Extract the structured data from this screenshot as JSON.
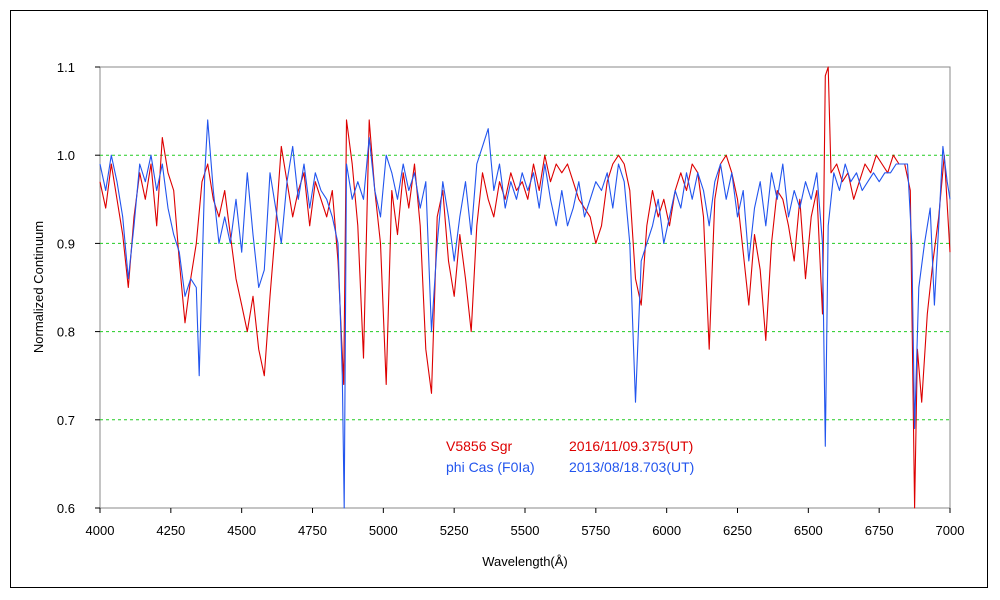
{
  "chart_data": {
    "type": "line",
    "title": "",
    "xlabel": "Wavelength(Å)",
    "ylabel": "Normalized Continuum",
    "xlim": [
      4000,
      7000
    ],
    "ylim": [
      0.6,
      1.1
    ],
    "xticks": [
      4000,
      4250,
      4500,
      4750,
      5000,
      5250,
      5500,
      5750,
      6000,
      6250,
      6500,
      6750,
      7000
    ],
    "yticks": [
      "0.6",
      "0.7",
      "0.8",
      "0.9",
      "1.0",
      "1.1"
    ],
    "grid": "horizontal dashed",
    "legend_placement": "bottom-center",
    "series": [
      {
        "name": "V5856 Sgr",
        "note": "2016/11/09.375(UT)",
        "color": "#dd0000",
        "points": [
          [
            4000,
            0.97
          ],
          [
            4020,
            0.94
          ],
          [
            4040,
            0.99
          ],
          [
            4060,
            0.95
          ],
          [
            4080,
            0.91
          ],
          [
            4100,
            0.85
          ],
          [
            4120,
            0.93
          ],
          [
            4140,
            0.98
          ],
          [
            4160,
            0.95
          ],
          [
            4180,
            0.99
          ],
          [
            4200,
            0.92
          ],
          [
            4220,
            1.02
          ],
          [
            4240,
            0.98
          ],
          [
            4260,
            0.96
          ],
          [
            4280,
            0.88
          ],
          [
            4300,
            0.81
          ],
          [
            4320,
            0.86
          ],
          [
            4340,
            0.9
          ],
          [
            4360,
            0.97
          ],
          [
            4380,
            0.99
          ],
          [
            4400,
            0.95
          ],
          [
            4420,
            0.93
          ],
          [
            4440,
            0.96
          ],
          [
            4460,
            0.91
          ],
          [
            4480,
            0.86
          ],
          [
            4500,
            0.83
          ],
          [
            4520,
            0.8
          ],
          [
            4540,
            0.84
          ],
          [
            4560,
            0.78
          ],
          [
            4580,
            0.75
          ],
          [
            4600,
            0.84
          ],
          [
            4620,
            0.92
          ],
          [
            4640,
            1.01
          ],
          [
            4660,
            0.97
          ],
          [
            4680,
            0.93
          ],
          [
            4700,
            0.96
          ],
          [
            4720,
            0.98
          ],
          [
            4740,
            0.92
          ],
          [
            4760,
            0.97
          ],
          [
            4780,
            0.95
          ],
          [
            4800,
            0.93
          ],
          [
            4820,
            0.96
          ],
          [
            4840,
            0.88
          ],
          [
            4860,
            0.74
          ],
          [
            4870,
            1.04
          ],
          [
            4890,
            0.99
          ],
          [
            4910,
            0.92
          ],
          [
            4930,
            0.77
          ],
          [
            4950,
            1.04
          ],
          [
            4970,
            0.96
          ],
          [
            4990,
            0.9
          ],
          [
            5010,
            0.74
          ],
          [
            5030,
            0.96
          ],
          [
            5050,
            0.91
          ],
          [
            5070,
            0.98
          ],
          [
            5090,
            0.94
          ],
          [
            5110,
            0.99
          ],
          [
            5130,
            0.92
          ],
          [
            5150,
            0.78
          ],
          [
            5170,
            0.73
          ],
          [
            5190,
            0.93
          ],
          [
            5210,
            0.96
          ],
          [
            5230,
            0.88
          ],
          [
            5250,
            0.84
          ],
          [
            5270,
            0.91
          ],
          [
            5290,
            0.86
          ],
          [
            5310,
            0.8
          ],
          [
            5330,
            0.92
          ],
          [
            5350,
            0.98
          ],
          [
            5370,
            0.95
          ],
          [
            5390,
            0.93
          ],
          [
            5410,
            0.97
          ],
          [
            5430,
            0.95
          ],
          [
            5450,
            0.98
          ],
          [
            5470,
            0.96
          ],
          [
            5490,
            0.97
          ],
          [
            5510,
            0.95
          ],
          [
            5530,
            0.99
          ],
          [
            5550,
            0.96
          ],
          [
            5570,
            1.0
          ],
          [
            5590,
            0.97
          ],
          [
            5610,
            0.99
          ],
          [
            5630,
            0.98
          ],
          [
            5650,
            0.99
          ],
          [
            5670,
            0.97
          ],
          [
            5690,
            0.95
          ],
          [
            5710,
            0.94
          ],
          [
            5730,
            0.93
          ],
          [
            5750,
            0.9
          ],
          [
            5770,
            0.92
          ],
          [
            5790,
            0.97
          ],
          [
            5810,
            0.99
          ],
          [
            5830,
            1.0
          ],
          [
            5850,
            0.99
          ],
          [
            5870,
            0.96
          ],
          [
            5890,
            0.86
          ],
          [
            5910,
            0.83
          ],
          [
            5930,
            0.92
          ],
          [
            5950,
            0.96
          ],
          [
            5970,
            0.93
          ],
          [
            5990,
            0.95
          ],
          [
            6010,
            0.92
          ],
          [
            6030,
            0.96
          ],
          [
            6050,
            0.98
          ],
          [
            6070,
            0.96
          ],
          [
            6090,
            0.99
          ],
          [
            6110,
            0.98
          ],
          [
            6130,
            0.93
          ],
          [
            6150,
            0.78
          ],
          [
            6170,
            0.95
          ],
          [
            6190,
            0.99
          ],
          [
            6210,
            1.0
          ],
          [
            6230,
            0.98
          ],
          [
            6250,
            0.95
          ],
          [
            6270,
            0.89
          ],
          [
            6290,
            0.83
          ],
          [
            6310,
            0.91
          ],
          [
            6330,
            0.87
          ],
          [
            6350,
            0.79
          ],
          [
            6370,
            0.9
          ],
          [
            6390,
            0.96
          ],
          [
            6410,
            0.95
          ],
          [
            6430,
            0.92
          ],
          [
            6450,
            0.88
          ],
          [
            6470,
            0.95
          ],
          [
            6490,
            0.86
          ],
          [
            6510,
            0.93
          ],
          [
            6530,
            0.96
          ],
          [
            6550,
            0.82
          ],
          [
            6560,
            1.09
          ],
          [
            6570,
            1.1
          ],
          [
            6580,
            0.98
          ],
          [
            6600,
            0.99
          ],
          [
            6620,
            0.97
          ],
          [
            6640,
            0.98
          ],
          [
            6660,
            0.95
          ],
          [
            6680,
            0.97
          ],
          [
            6700,
            0.99
          ],
          [
            6720,
            0.98
          ],
          [
            6740,
            1.0
          ],
          [
            6760,
            0.99
          ],
          [
            6780,
            0.98
          ],
          [
            6800,
            1.0
          ],
          [
            6820,
            0.99
          ],
          [
            6840,
            0.99
          ],
          [
            6860,
            0.96
          ],
          [
            6875,
            0.6
          ],
          [
            6885,
            0.78
          ],
          [
            6900,
            0.72
          ],
          [
            6920,
            0.82
          ],
          [
            6940,
            0.88
          ],
          [
            6960,
            0.93
          ],
          [
            6980,
            1.0
          ],
          [
            7000,
            0.89
          ]
        ]
      },
      {
        "name": "phi Cas (F0Ia)",
        "note": "2013/08/18.703(UT)",
        "color": "#2255ee",
        "points": [
          [
            4000,
            0.99
          ],
          [
            4020,
            0.96
          ],
          [
            4040,
            1.0
          ],
          [
            4060,
            0.97
          ],
          [
            4080,
            0.93
          ],
          [
            4100,
            0.86
          ],
          [
            4120,
            0.92
          ],
          [
            4140,
            0.99
          ],
          [
            4160,
            0.97
          ],
          [
            4180,
            1.0
          ],
          [
            4200,
            0.96
          ],
          [
            4220,
            0.99
          ],
          [
            4240,
            0.94
          ],
          [
            4260,
            0.91
          ],
          [
            4280,
            0.89
          ],
          [
            4300,
            0.84
          ],
          [
            4320,
            0.86
          ],
          [
            4340,
            0.85
          ],
          [
            4350,
            0.75
          ],
          [
            4370,
            0.98
          ],
          [
            4380,
            1.04
          ],
          [
            4400,
            0.96
          ],
          [
            4420,
            0.9
          ],
          [
            4440,
            0.93
          ],
          [
            4460,
            0.9
          ],
          [
            4480,
            0.95
          ],
          [
            4500,
            0.89
          ],
          [
            4520,
            0.98
          ],
          [
            4540,
            0.91
          ],
          [
            4560,
            0.85
          ],
          [
            4580,
            0.87
          ],
          [
            4600,
            0.98
          ],
          [
            4620,
            0.94
          ],
          [
            4640,
            0.9
          ],
          [
            4660,
            0.97
          ],
          [
            4680,
            1.01
          ],
          [
            4700,
            0.95
          ],
          [
            4720,
            0.99
          ],
          [
            4740,
            0.94
          ],
          [
            4760,
            0.98
          ],
          [
            4780,
            0.96
          ],
          [
            4800,
            0.95
          ],
          [
            4820,
            0.93
          ],
          [
            4840,
            0.9
          ],
          [
            4855,
            0.75
          ],
          [
            4862,
            0.6
          ],
          [
            4870,
            0.99
          ],
          [
            4890,
            0.95
          ],
          [
            4910,
            0.97
          ],
          [
            4930,
            0.95
          ],
          [
            4950,
            1.02
          ],
          [
            4970,
            0.96
          ],
          [
            4990,
            0.93
          ],
          [
            5010,
            1.0
          ],
          [
            5030,
            0.98
          ],
          [
            5050,
            0.95
          ],
          [
            5070,
            0.99
          ],
          [
            5090,
            0.96
          ],
          [
            5110,
            0.98
          ],
          [
            5130,
            0.94
          ],
          [
            5150,
            0.97
          ],
          [
            5170,
            0.8
          ],
          [
            5190,
            0.9
          ],
          [
            5210,
            0.97
          ],
          [
            5230,
            0.93
          ],
          [
            5250,
            0.88
          ],
          [
            5270,
            0.93
          ],
          [
            5290,
            0.97
          ],
          [
            5310,
            0.91
          ],
          [
            5330,
            0.99
          ],
          [
            5350,
            1.01
          ],
          [
            5370,
            1.03
          ],
          [
            5390,
            0.96
          ],
          [
            5410,
            0.99
          ],
          [
            5430,
            0.94
          ],
          [
            5450,
            0.97
          ],
          [
            5470,
            0.95
          ],
          [
            5490,
            0.98
          ],
          [
            5510,
            0.96
          ],
          [
            5530,
            0.98
          ],
          [
            5550,
            0.94
          ],
          [
            5570,
            0.99
          ],
          [
            5590,
            0.95
          ],
          [
            5610,
            0.92
          ],
          [
            5630,
            0.96
          ],
          [
            5650,
            0.92
          ],
          [
            5670,
            0.94
          ],
          [
            5690,
            0.97
          ],
          [
            5710,
            0.93
          ],
          [
            5730,
            0.95
          ],
          [
            5750,
            0.97
          ],
          [
            5770,
            0.96
          ],
          [
            5790,
            0.98
          ],
          [
            5810,
            0.94
          ],
          [
            5830,
            0.99
          ],
          [
            5850,
            0.97
          ],
          [
            5870,
            0.9
          ],
          [
            5890,
            0.72
          ],
          [
            5910,
            0.88
          ],
          [
            5930,
            0.9
          ],
          [
            5950,
            0.92
          ],
          [
            5970,
            0.95
          ],
          [
            5990,
            0.9
          ],
          [
            6010,
            0.93
          ],
          [
            6030,
            0.96
          ],
          [
            6050,
            0.94
          ],
          [
            6070,
            0.98
          ],
          [
            6090,
            0.95
          ],
          [
            6110,
            0.98
          ],
          [
            6130,
            0.96
          ],
          [
            6150,
            0.92
          ],
          [
            6170,
            0.97
          ],
          [
            6190,
            0.99
          ],
          [
            6210,
            0.95
          ],
          [
            6230,
            0.98
          ],
          [
            6250,
            0.93
          ],
          [
            6270,
            0.96
          ],
          [
            6290,
            0.88
          ],
          [
            6310,
            0.94
          ],
          [
            6330,
            0.97
          ],
          [
            6350,
            0.92
          ],
          [
            6370,
            0.98
          ],
          [
            6390,
            0.95
          ],
          [
            6410,
            0.99
          ],
          [
            6430,
            0.93
          ],
          [
            6450,
            0.96
          ],
          [
            6470,
            0.94
          ],
          [
            6490,
            0.97
          ],
          [
            6510,
            0.95
          ],
          [
            6530,
            0.98
          ],
          [
            6550,
            0.9
          ],
          [
            6560,
            0.67
          ],
          [
            6570,
            0.92
          ],
          [
            6590,
            0.98
          ],
          [
            6610,
            0.96
          ],
          [
            6630,
            0.99
          ],
          [
            6650,
            0.97
          ],
          [
            6670,
            0.98
          ],
          [
            6690,
            0.96
          ],
          [
            6710,
            0.97
          ],
          [
            6730,
            0.98
          ],
          [
            6750,
            0.97
          ],
          [
            6770,
            0.98
          ],
          [
            6790,
            0.98
          ],
          [
            6810,
            0.99
          ],
          [
            6830,
            0.99
          ],
          [
            6850,
            0.99
          ],
          [
            6865,
            0.9
          ],
          [
            6875,
            0.69
          ],
          [
            6890,
            0.85
          ],
          [
            6910,
            0.9
          ],
          [
            6930,
            0.94
          ],
          [
            6945,
            0.83
          ],
          [
            6960,
            0.92
          ],
          [
            6975,
            1.01
          ],
          [
            6990,
            0.97
          ],
          [
            7000,
            0.95
          ]
        ]
      }
    ]
  }
}
